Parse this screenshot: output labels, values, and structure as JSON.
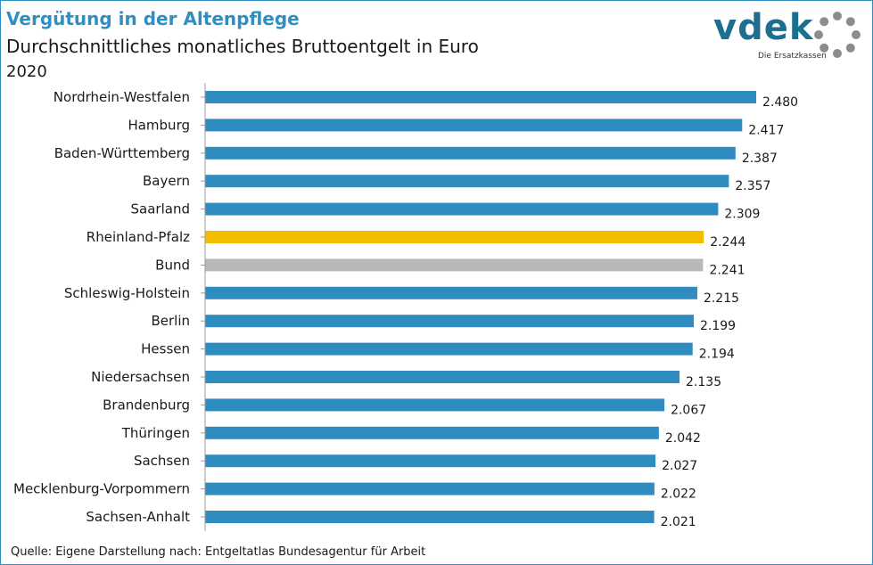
{
  "header": {
    "title": "Vergütung in der Altenpflege",
    "subtitle": "Durchschnittliches monatliches Bruttoentgelt in Euro",
    "year": "2020"
  },
  "logo": {
    "word": "vdek",
    "tagline": "Die Ersatzkassen",
    "icon": "vdek-ring-logo-icon"
  },
  "source": "Quelle: Eigene Darstellung nach: Entgeltatlas Bundesagentur für Arbeit",
  "colors": {
    "accent": "#2f8fc2",
    "default_bar": "#2e8cc0",
    "highlight_bar": "#f5bd00",
    "national_bar": "#b8b8b8"
  },
  "chart_data": {
    "type": "bar",
    "orientation": "horizontal",
    "title": "Vergütung in der Altenpflege",
    "subtitle": "Durchschnittliches monatliches Bruttoentgelt in Euro",
    "categories": [
      "Nordrhein-Westfalen",
      "Hamburg",
      "Baden-Württemberg",
      "Bayern",
      "Saarland",
      "Rheinland-Pfalz",
      "Bund",
      "Schleswig-Holstein",
      "Berlin",
      "Hessen",
      "Niedersachsen",
      "Brandenburg",
      "Thüringen",
      "Sachsen",
      "Mecklenburg-Vorpommern",
      "Sachsen-Anhalt"
    ],
    "values": [
      2480,
      2417,
      2387,
      2357,
      2309,
      2244,
      2241,
      2215,
      2199,
      2194,
      2135,
      2067,
      2042,
      2027,
      2022,
      2021
    ],
    "value_labels": [
      "2.480",
      "2.417",
      "2.387",
      "2.357",
      "2.309",
      "2.244",
      "2.241",
      "2.215",
      "2.199",
      "2.194",
      "2.135",
      "2.067",
      "2.042",
      "2.027",
      "2.022",
      "2.021"
    ],
    "bar_colors": [
      "default",
      "default",
      "default",
      "default",
      "default",
      "highlight",
      "national",
      "default",
      "default",
      "default",
      "default",
      "default",
      "default",
      "default",
      "default",
      "default"
    ],
    "xlim": [
      0,
      2480
    ],
    "grid": false,
    "legend": "none"
  }
}
